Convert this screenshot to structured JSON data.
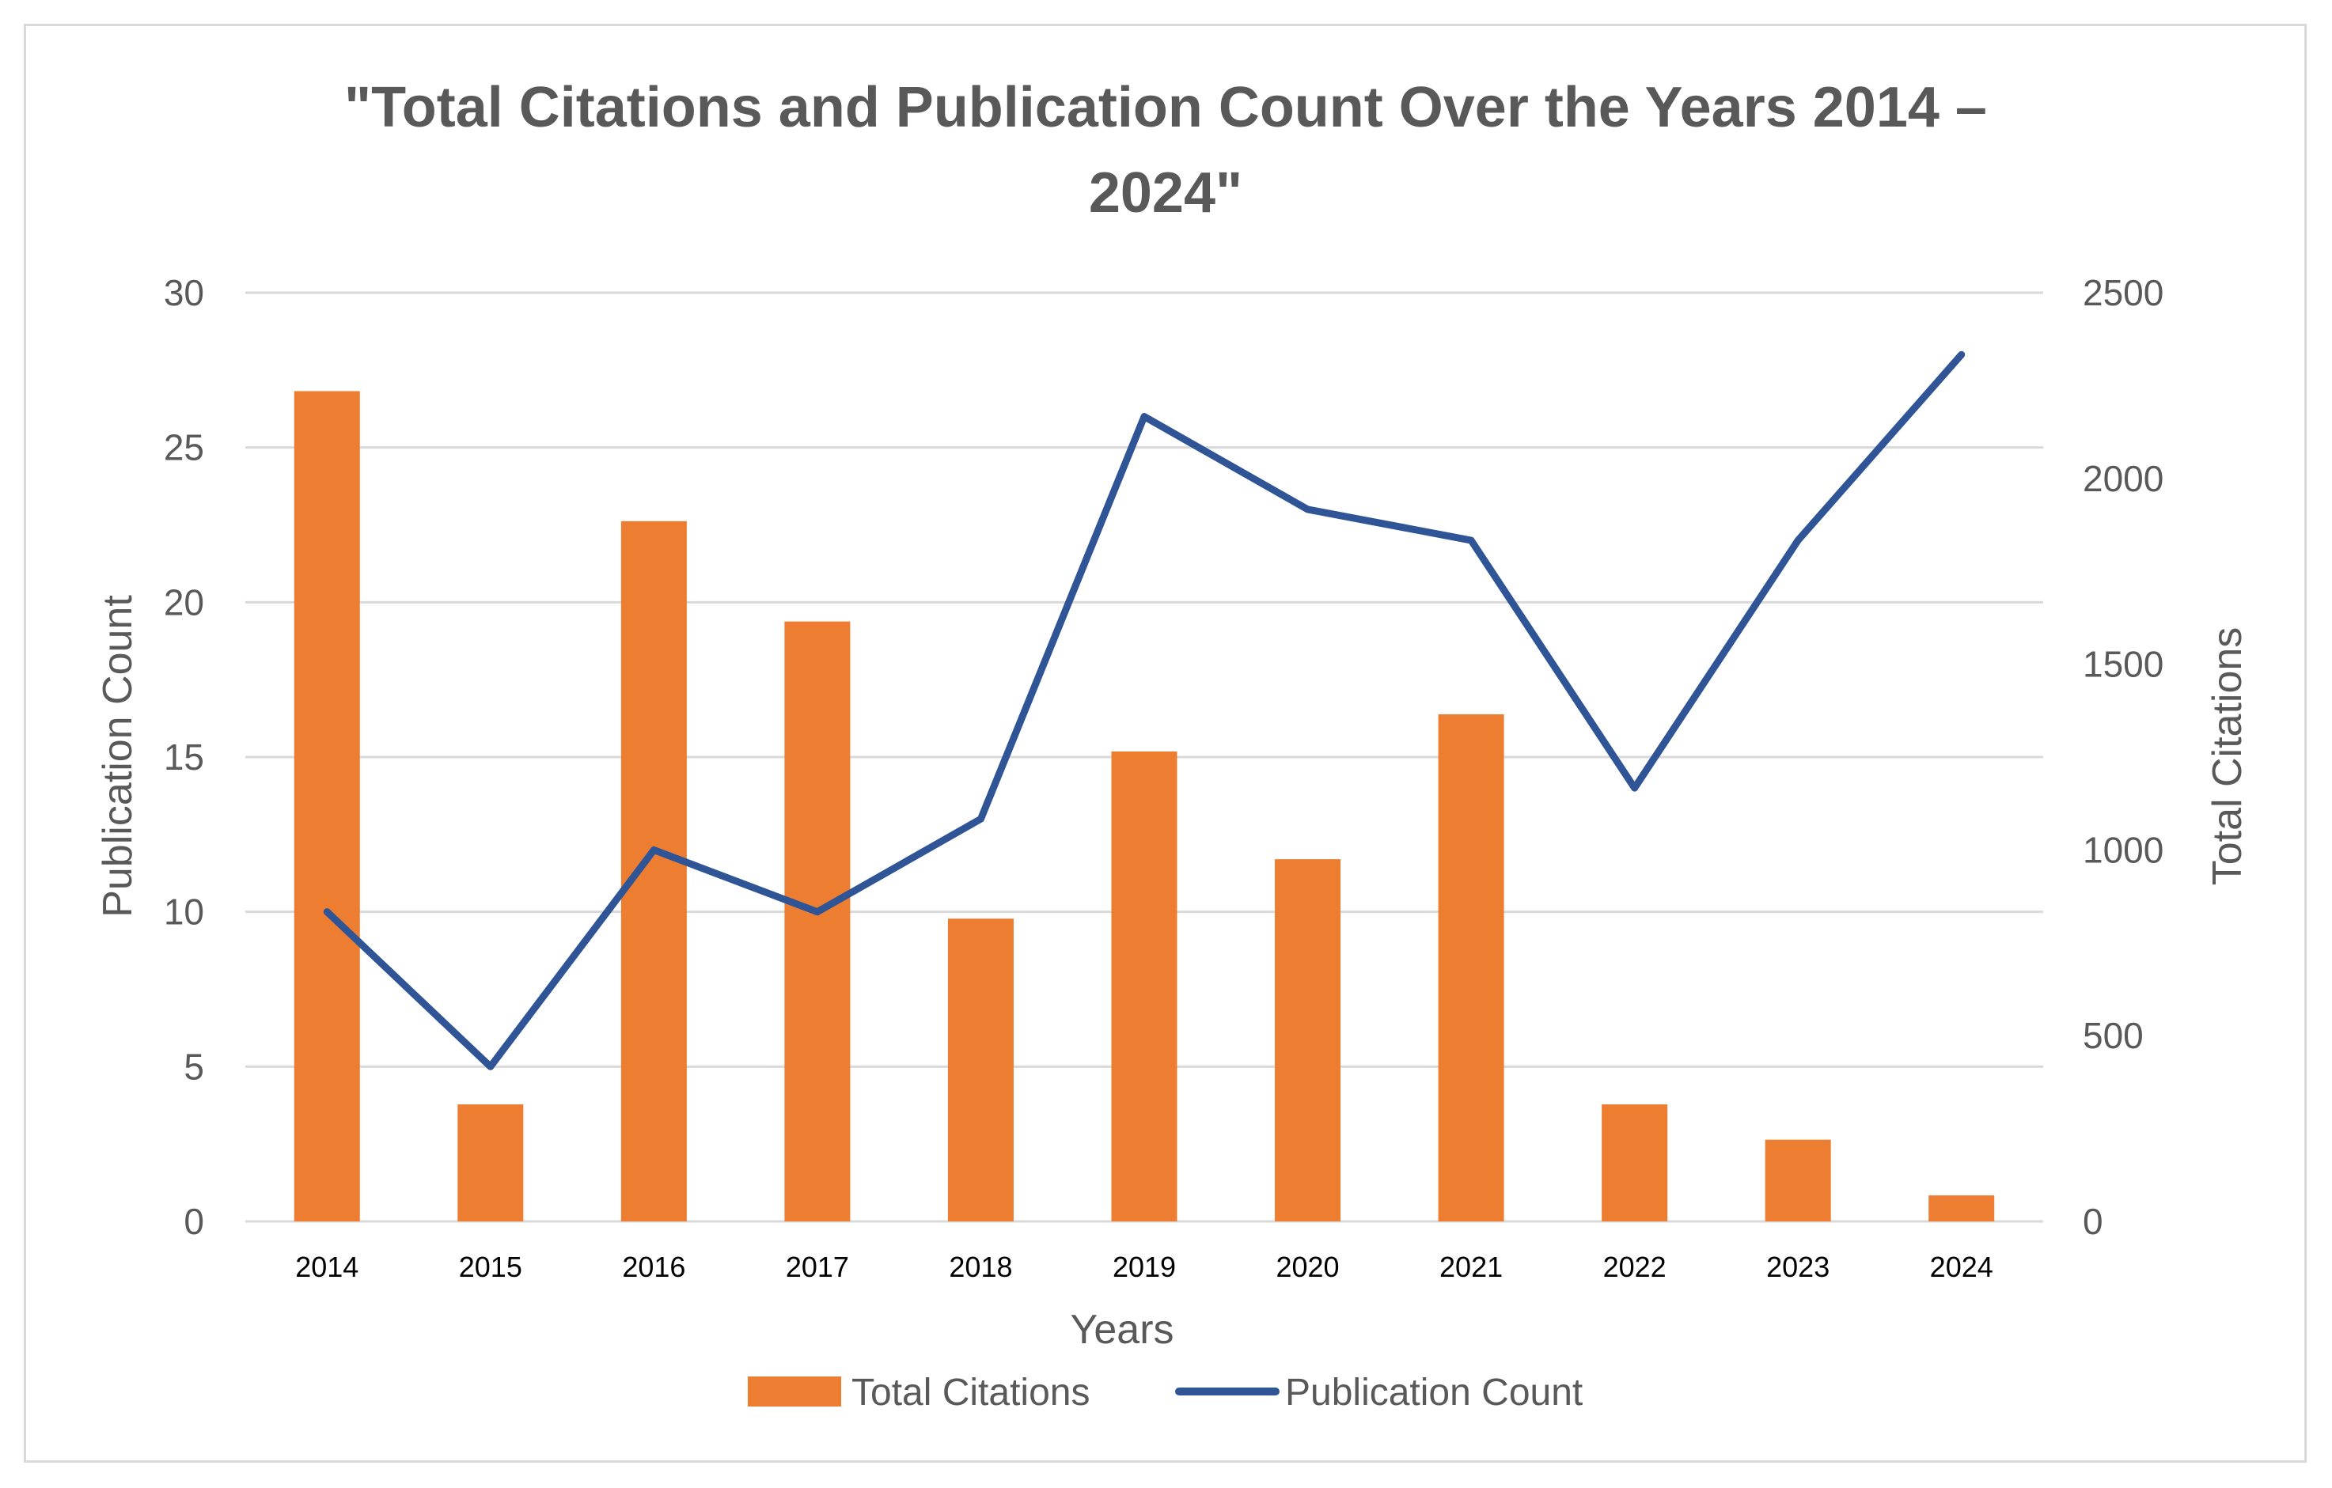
{
  "chart_data": {
    "type": "bar+line",
    "title_line1": "\"Total Citations and Publication Count Over the Years 2014 –",
    "title_line2": "2024\"",
    "xlabel": "Years",
    "ylabel_left": "Publication Count",
    "ylabel_right": "Total Citations",
    "categories": [
      "2014",
      "2015",
      "2016",
      "2017",
      "2018",
      "2019",
      "2020",
      "2021",
      "2022",
      "2023",
      "2024"
    ],
    "left_axis": {
      "min": 0,
      "max": 30,
      "ticks": [
        "0",
        "5",
        "10",
        "15",
        "20",
        "25",
        "30"
      ]
    },
    "right_axis": {
      "min": 0,
      "max": 2500,
      "ticks": [
        "0",
        "500",
        "1000",
        "1500",
        "2000",
        "2500"
      ]
    },
    "series": [
      {
        "name": "Total Citations",
        "type": "bar",
        "axis": "right",
        "color": "#ed7d31",
        "values": [
          2235,
          315,
          1885,
          1615,
          815,
          1265,
          975,
          1365,
          315,
          220,
          70
        ]
      },
      {
        "name": "Publication Count",
        "type": "line",
        "axis": "left",
        "color": "#2f5597",
        "values": [
          10,
          5,
          12,
          10,
          13,
          26,
          23,
          22,
          14,
          22,
          28
        ]
      }
    ],
    "legend": [
      {
        "name": "Total Citations",
        "swatch": "bar",
        "color": "#ed7d31"
      },
      {
        "name": "Publication Count",
        "swatch": "line",
        "color": "#2f5597"
      }
    ],
    "grid": true,
    "legend_position": "bottom"
  }
}
